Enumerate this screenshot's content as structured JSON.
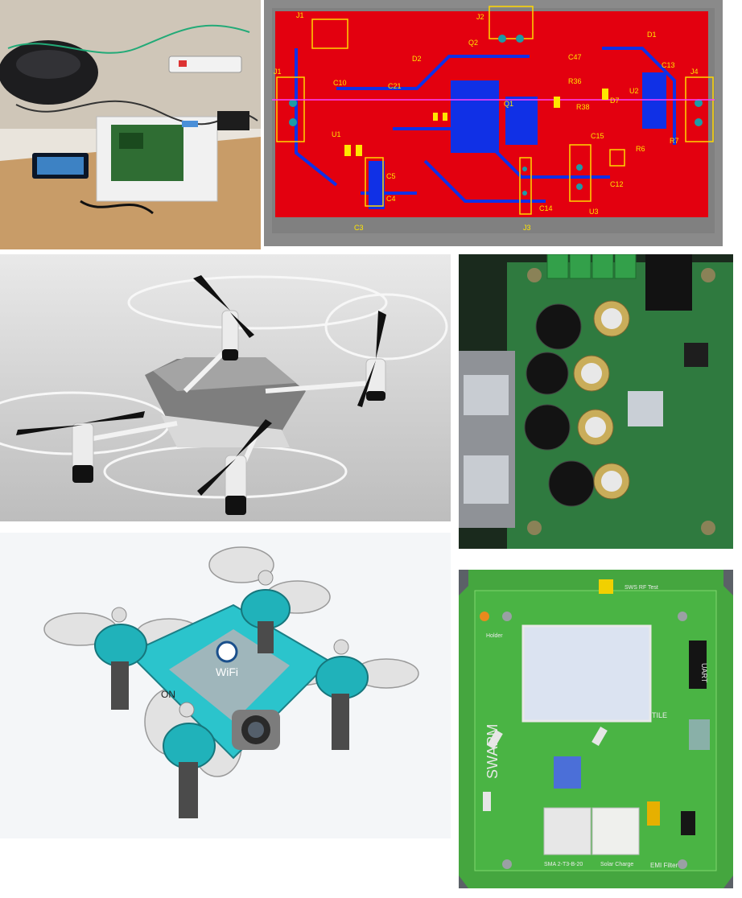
{
  "collage": {
    "tiles": [
      {
        "id": "lab-bench",
        "subject": "electronics workbench photo"
      },
      {
        "id": "pcb-layout",
        "subject": "PCB layout screenshot (red/blue layers)"
      },
      {
        "id": "drone-white",
        "subject": "white quadcopter render"
      },
      {
        "id": "board-capacitors",
        "subject": "green board with capacitors"
      },
      {
        "id": "drone-teal",
        "subject": "teal mini drone CAD render"
      },
      {
        "id": "swarm-board",
        "subject": "green SWARM board render"
      }
    ]
  },
  "pcb_labels": {
    "j1": "J1",
    "j2": "J2",
    "j3": "J3",
    "j4": "J4",
    "d1": "D1",
    "d2": "D2",
    "d7": "D7",
    "u1": "U1",
    "u2": "U2",
    "u3": "U3",
    "c3": "C3",
    "c4": "C4",
    "c5": "C5",
    "c10": "C10",
    "c12": "C12",
    "c13": "C13",
    "c14": "C14",
    "c15": "C15",
    "c21": "C21",
    "c47": "C47",
    "r36": "R36",
    "r38": "R38",
    "r7": "R7",
    "r6": "R6",
    "q1": "Q1",
    "q2": "Q2"
  },
  "drone_teal": {
    "wifi_label": "WiFi",
    "on_label": "ON"
  },
  "swarm_board": {
    "brand": "SWARM",
    "uart": "UART",
    "tile": "TILE",
    "emi": "EMI Filter",
    "ssd_1": "SMA 2-T3-B-20",
    "ssd_2": "Solar Charge",
    "rf_test": "SWS RF Test",
    "holder": "Holder"
  }
}
